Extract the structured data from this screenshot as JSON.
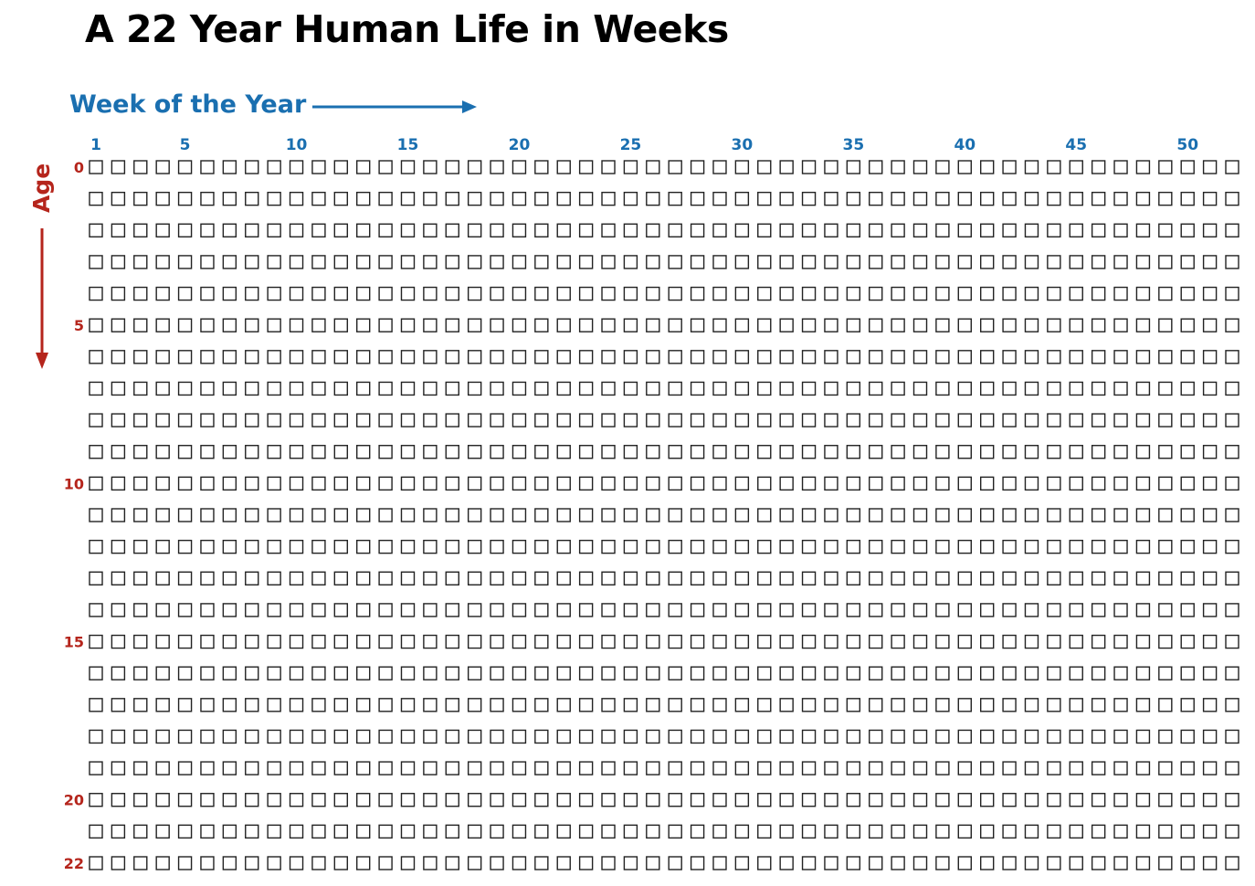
{
  "title": "A 22 Year Human Life in Weeks",
  "axes": {
    "week_label": "Week of the Year",
    "age_label": "Age"
  },
  "colors": {
    "week_axis": "#1a6fb0",
    "age_axis": "#b5251c",
    "box_stroke": "#222222",
    "title": "#000000"
  },
  "chart_data": {
    "type": "grid",
    "columns": 52,
    "rows": 23,
    "x_ticks": [
      "1",
      "5",
      "10",
      "15",
      "20",
      "25",
      "30",
      "35",
      "40",
      "45",
      "50"
    ],
    "x_tick_weeks": [
      1,
      5,
      10,
      15,
      20,
      25,
      30,
      35,
      40,
      45,
      50
    ],
    "y_ticks": [
      "0",
      "5",
      "10",
      "15",
      "20",
      "22"
    ],
    "y_tick_ages": [
      0,
      5,
      10,
      15,
      20,
      22
    ]
  }
}
